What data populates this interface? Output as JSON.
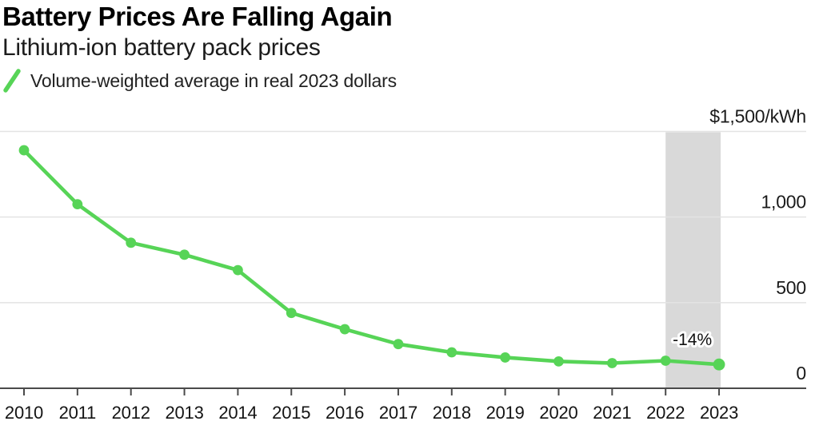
{
  "header": {
    "title": "Battery Prices Are Falling Again",
    "subtitle": "Lithium-ion battery pack prices",
    "legend": {
      "label": "Volume-weighted average in real 2023 dollars",
      "marker": "green-slash"
    }
  },
  "chart_data": {
    "type": "line",
    "title": "Battery Prices Are Falling Again",
    "subtitle": "Lithium-ion battery pack prices",
    "categories": [
      "2010",
      "2011",
      "2012",
      "2013",
      "2014",
      "2015",
      "2016",
      "2017",
      "2018",
      "2019",
      "2020",
      "2021",
      "2022",
      "2023"
    ],
    "series": [
      {
        "name": "Volume-weighted average in real 2023 dollars",
        "values": [
          1390,
          1075,
          850,
          780,
          690,
          440,
          345,
          258,
          210,
          180,
          157,
          147,
          161,
          139
        ]
      }
    ],
    "unit": "$/kWh",
    "ylim": [
      0,
      1500
    ],
    "yticks": [
      {
        "value": 0,
        "label": "0"
      },
      {
        "value": 500,
        "label": "500"
      },
      {
        "value": 1000,
        "label": "1,000"
      },
      {
        "value": 1500,
        "label": "$1,500/kWh"
      }
    ],
    "grid": "horizontal",
    "legend_position": "top-left",
    "annotation": {
      "text": "-14%",
      "between": [
        "2022",
        "2023"
      ]
    },
    "highlight_band": {
      "from": "2022",
      "to": "2023"
    },
    "colors": {
      "line": "#57d457",
      "marker": "#57d457",
      "band": "#d9d9d9",
      "grid": "#e3e3e3",
      "axis": "#4a4a4a",
      "label_text": "#1a1a1a",
      "annotation_halo": "#ffffff"
    }
  }
}
